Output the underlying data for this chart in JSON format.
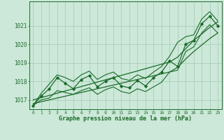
{
  "xlabel": "Graphe pression niveau de la mer (hPa)",
  "background_color": "#cce8d8",
  "grid_color": "#aacebb",
  "line_color": "#1a6b2a",
  "x_values": [
    0,
    1,
    2,
    3,
    4,
    5,
    6,
    7,
    8,
    9,
    10,
    11,
    12,
    13,
    14,
    15,
    16,
    17,
    18,
    19,
    20,
    21,
    22,
    23
  ],
  "y_main": [
    1016.7,
    1017.2,
    1017.6,
    1018.2,
    1017.9,
    1017.6,
    1018.1,
    1018.3,
    1017.7,
    1018.0,
    1018.2,
    1017.75,
    1017.65,
    1018.05,
    1017.75,
    1018.2,
    1018.5,
    1019.1,
    1018.8,
    1020.0,
    1020.2,
    1021.1,
    1021.5,
    1021.0
  ],
  "y_upper": [
    1016.7,
    1017.35,
    1017.85,
    1018.35,
    1018.2,
    1018.0,
    1018.35,
    1018.55,
    1018.1,
    1018.35,
    1018.5,
    1018.15,
    1018.05,
    1018.35,
    1018.15,
    1018.5,
    1018.8,
    1019.35,
    1020.1,
    1020.4,
    1020.5,
    1021.35,
    1021.75,
    1021.25
  ],
  "y_lower": [
    1016.7,
    1017.0,
    1017.1,
    1017.5,
    1017.4,
    1017.3,
    1017.5,
    1017.65,
    1017.3,
    1017.55,
    1017.7,
    1017.45,
    1017.35,
    1017.6,
    1017.45,
    1017.7,
    1017.95,
    1018.5,
    1018.6,
    1019.6,
    1019.85,
    1020.6,
    1021.05,
    1020.6
  ],
  "y_trend_top": [
    1017.0,
    1017.12,
    1017.24,
    1017.36,
    1017.48,
    1017.6,
    1017.72,
    1017.84,
    1017.96,
    1018.08,
    1018.2,
    1018.32,
    1018.44,
    1018.56,
    1018.68,
    1018.8,
    1018.92,
    1019.04,
    1019.3,
    1019.75,
    1020.2,
    1020.55,
    1020.9,
    1021.2
  ],
  "y_trend_bot": [
    1016.8,
    1016.9,
    1017.0,
    1017.1,
    1017.2,
    1017.3,
    1017.4,
    1017.5,
    1017.6,
    1017.7,
    1017.8,
    1017.9,
    1018.0,
    1018.1,
    1018.2,
    1018.3,
    1018.4,
    1018.5,
    1018.75,
    1019.2,
    1019.6,
    1019.95,
    1020.3,
    1020.6
  ],
  "ylim": [
    1016.5,
    1022.3
  ],
  "yticks": [
    1017,
    1018,
    1019,
    1020,
    1021
  ],
  "figsize": [
    3.2,
    2.0
  ],
  "dpi": 100
}
